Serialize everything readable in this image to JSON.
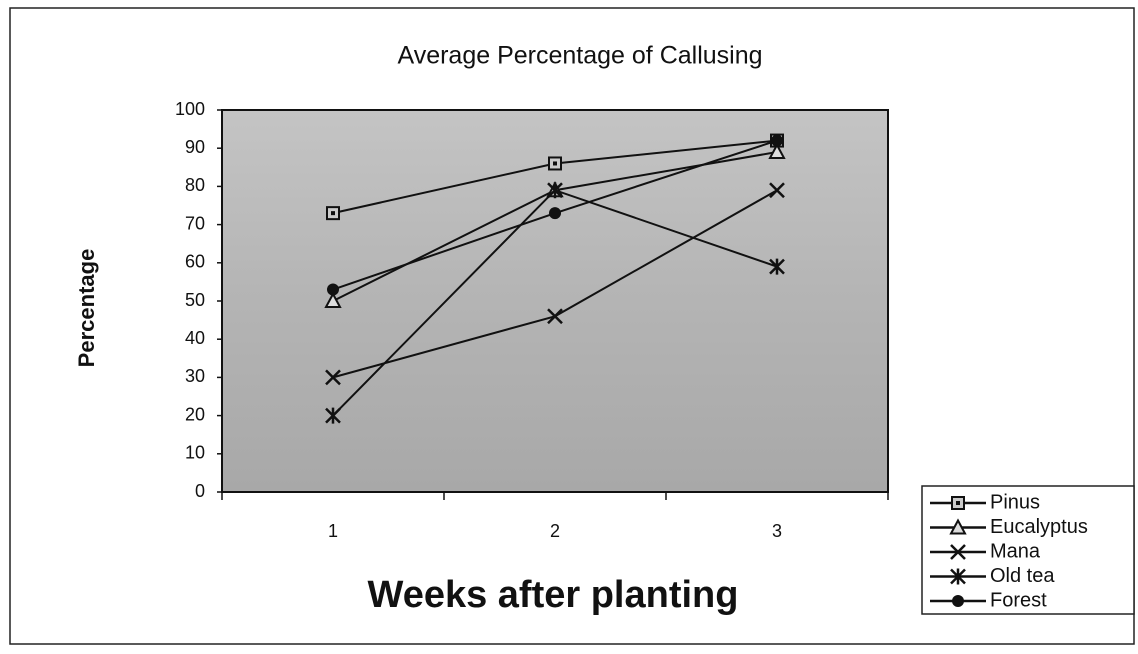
{
  "chart_data": {
    "type": "line",
    "title": "Average Percentage of Callusing",
    "x_label": "Weeks after planting",
    "y_label": "Percentage",
    "categories": [
      "1",
      "2",
      "3"
    ],
    "series": [
      {
        "name": "Pinus",
        "color": "#111111",
        "marker": "square",
        "values": [
          73,
          86,
          92
        ]
      },
      {
        "name": "Eucalyptus",
        "color": "#111111",
        "marker": "triangle",
        "values": [
          50,
          79,
          89
        ]
      },
      {
        "name": "Mana",
        "color": "#111111",
        "marker": "x",
        "values": [
          30,
          46,
          79
        ]
      },
      {
        "name": "Old tea",
        "color": "#111111",
        "marker": "star",
        "values": [
          20,
          79,
          59
        ]
      },
      {
        "name": "Forest",
        "color": "#111111",
        "marker": "circle",
        "values": [
          53,
          73,
          92
        ]
      }
    ],
    "ylim": [
      0,
      100
    ],
    "yticks": [
      0,
      10,
      20,
      30,
      40,
      50,
      60,
      70,
      80,
      90,
      100
    ],
    "legend": "bottom-right"
  }
}
